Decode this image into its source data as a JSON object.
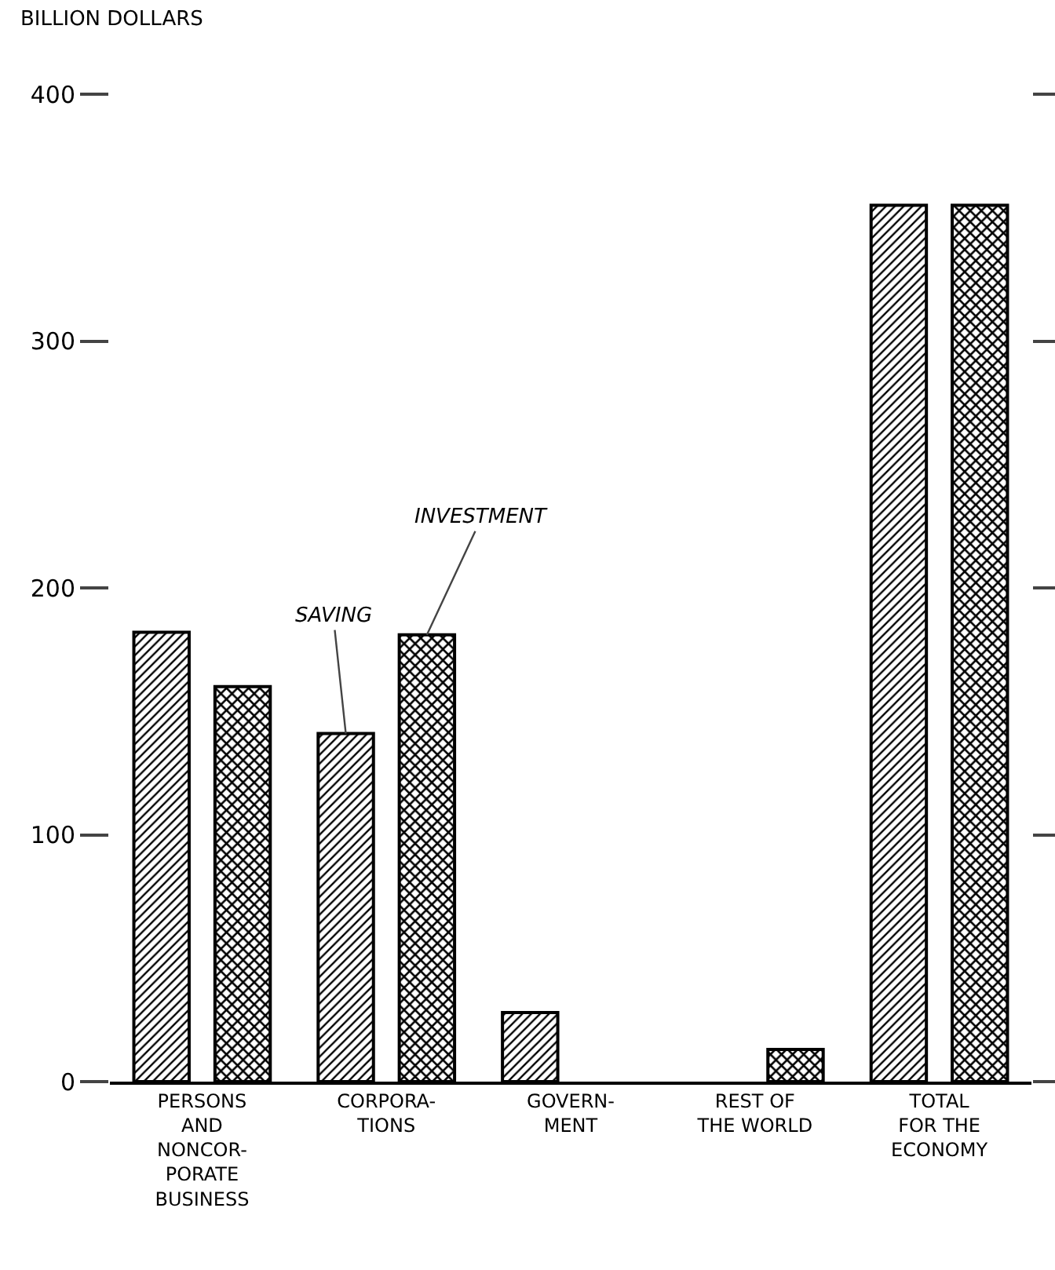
{
  "chart_data": {
    "type": "bar",
    "ylabel": "BILLION DOLLARS",
    "categories": [
      "PERSONS\nAND\nNONCOR-\nPORATE\nBUSINESS",
      "CORPORA-\nTIONS",
      "GOVERN-\nMENT",
      "REST OF\nTHE WORLD",
      "TOTAL\nFOR THE\nECONOMY"
    ],
    "series": [
      {
        "name": "SAVING",
        "color": "#000000",
        "values": [
          182,
          141,
          28,
          0,
          355
        ]
      },
      {
        "name": "INVESTMENT",
        "color": "#000000",
        "values": [
          160,
          181,
          0,
          13,
          355
        ]
      }
    ],
    "ylim": [
      0,
      400
    ],
    "yticks": [
      0,
      100,
      200,
      300,
      400
    ],
    "grid": false,
    "legend": false
  }
}
